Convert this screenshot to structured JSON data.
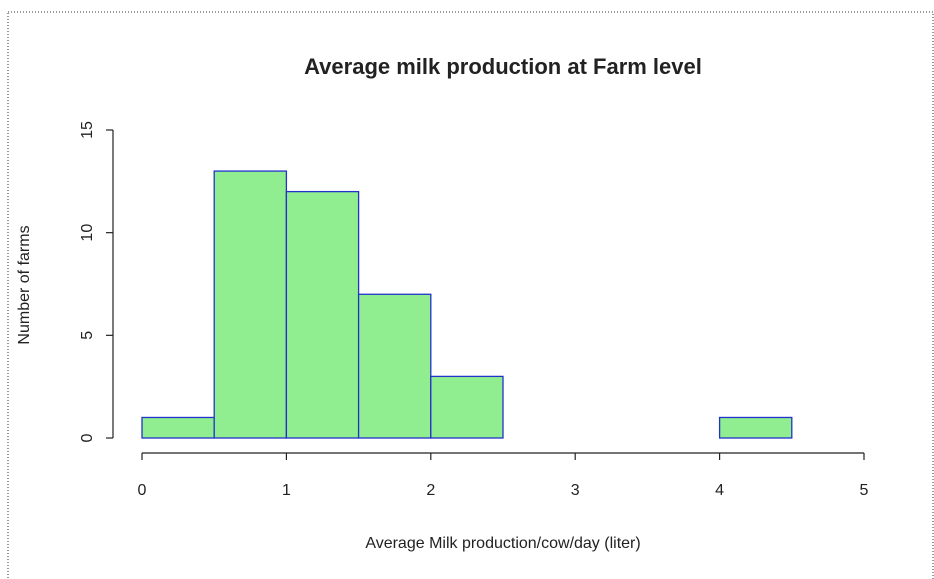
{
  "chart_data": {
    "type": "histogram",
    "title": "Average milk production at Farm level",
    "x_label": "Average Milk production/cow/day (liter)",
    "y_label": "Number of farms",
    "bins": [
      0,
      0.5,
      1,
      1.5,
      2,
      2.5,
      3,
      3.5,
      4,
      4.5
    ],
    "counts": [
      1,
      13,
      12,
      7,
      3,
      0,
      0,
      0,
      1
    ],
    "color": "#90ee90",
    "edge_color": "#2233cc",
    "xlim": [
      0,
      5
    ],
    "xticks": [
      0,
      1,
      2,
      3,
      4,
      5
    ],
    "ylim": [
      0,
      15
    ],
    "yticks": [
      0,
      5,
      10,
      15
    ]
  }
}
